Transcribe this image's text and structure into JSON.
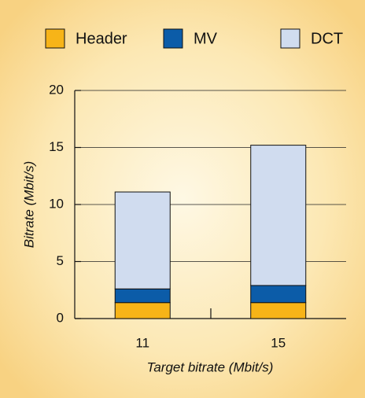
{
  "chart_data": {
    "type": "stacked_bar",
    "categories": [
      "11",
      "15"
    ],
    "series": [
      {
        "name": "Header",
        "color": "#f7b418",
        "values": [
          1.4,
          1.4
        ]
      },
      {
        "name": "MV",
        "color": "#0c5ca8",
        "values": [
          1.2,
          1.5
        ]
      },
      {
        "name": "DCT",
        "color": "#d0dcef",
        "values": [
          8.5,
          12.3
        ]
      }
    ],
    "xlabel": "Target bitrate (Mbit/s)",
    "ylabel": "Bitrate (Mbit/s)",
    "ylim": [
      0,
      20
    ],
    "yticks": [
      0,
      5,
      10,
      15,
      20
    ],
    "grid": true,
    "legend": "top"
  }
}
